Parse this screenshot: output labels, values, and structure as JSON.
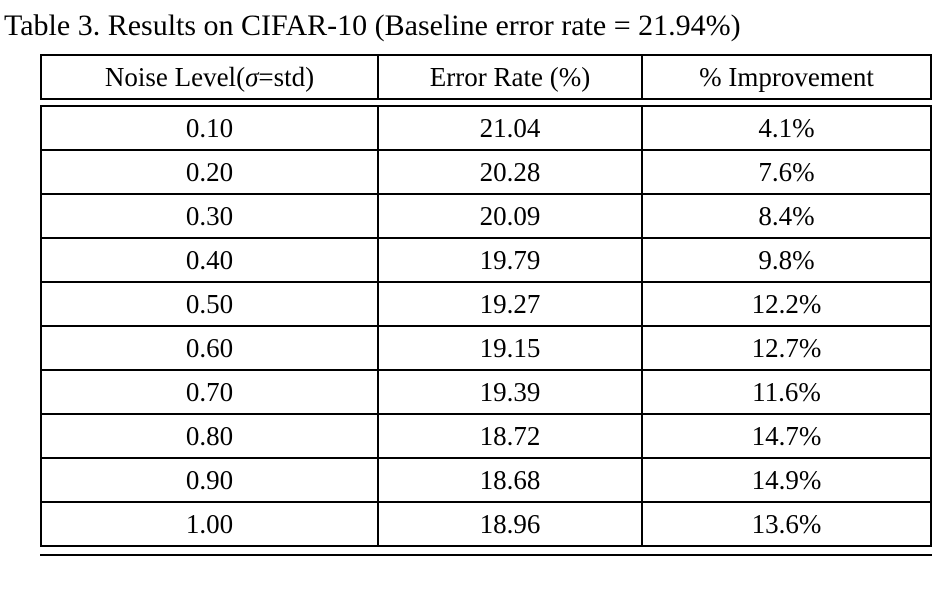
{
  "colors": {
    "background": "#ffffff",
    "text": "#000000",
    "border": "#000000"
  },
  "caption": "Table 3. Results on CIFAR-10 (Baseline error rate = 21.94%)",
  "table": {
    "header": {
      "noise_prefix": "Noise Level(",
      "noise_sigma": "σ",
      "noise_suffix": "=std)",
      "error_rate": "Error Rate (%)",
      "improvement": "% Improvement"
    },
    "columns": [
      "Noise Level(σ=std)",
      "Error Rate (%)",
      "% Improvement"
    ],
    "rows": [
      [
        "0.10",
        "21.04",
        "4.1%"
      ],
      [
        "0.20",
        "20.28",
        "7.6%"
      ],
      [
        "0.30",
        "20.09",
        "8.4%"
      ],
      [
        "0.40",
        "19.79",
        "9.8%"
      ],
      [
        "0.50",
        "19.27",
        "12.2%"
      ],
      [
        "0.60",
        "19.15",
        "12.7%"
      ],
      [
        "0.70",
        "19.39",
        "11.6%"
      ],
      [
        "0.80",
        "18.72",
        "14.7%"
      ],
      [
        "0.90",
        "18.68",
        "14.9%"
      ],
      [
        "1.00",
        "18.96",
        "13.6%"
      ]
    ]
  }
}
